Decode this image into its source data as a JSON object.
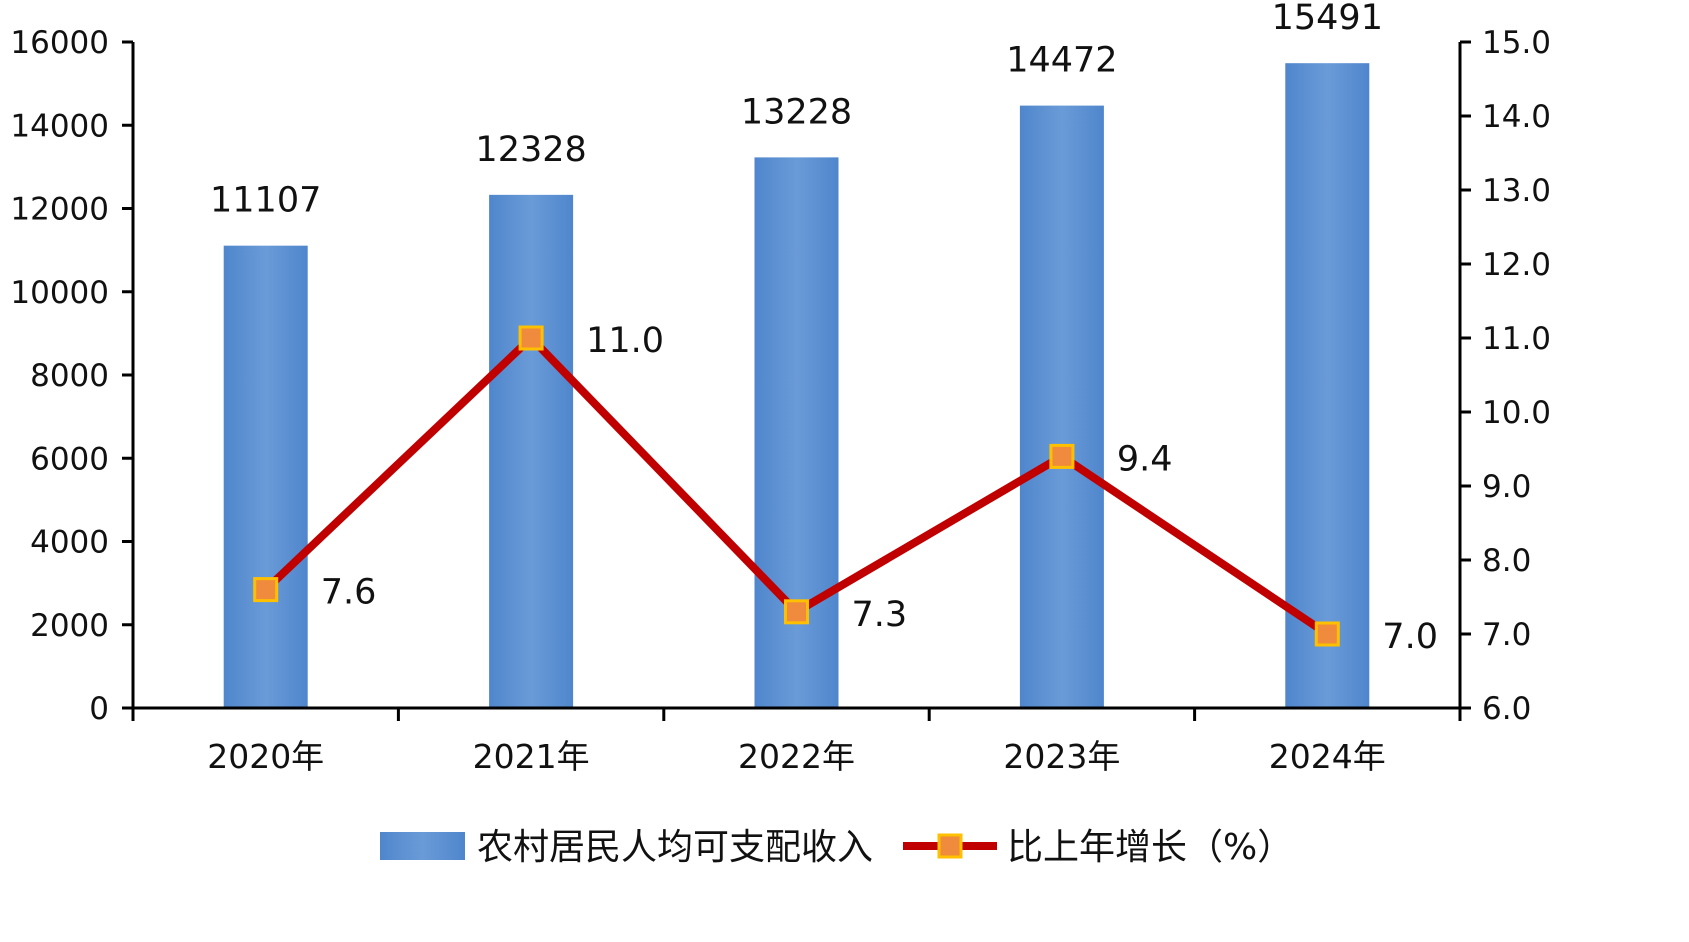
{
  "chart_data": {
    "type": "bar+line",
    "categories": [
      "2020年",
      "2021年",
      "2022年",
      "2023年",
      "2024年"
    ],
    "series": [
      {
        "name": "农村居民人均可支配收入",
        "type": "bar",
        "axis": "left",
        "values": [
          11107,
          12328,
          13228,
          14472,
          15491
        ],
        "labels": [
          "11107",
          "12328",
          "13228",
          "14472",
          "15491"
        ],
        "color": "#5b8fd0"
      },
      {
        "name": "比上年增长（%）",
        "type": "line",
        "axis": "right",
        "values": [
          7.6,
          11.0,
          7.3,
          9.4,
          7.0
        ],
        "labels": [
          "7.6",
          "11.0",
          "7.3",
          "9.4",
          "7.0"
        ],
        "color": "#c00000",
        "marker_color": "#f08a3c",
        "marker_border": "#ffc000"
      }
    ],
    "y_left": {
      "min": 0,
      "max": 16000,
      "ticks": [
        "0",
        "2000",
        "4000",
        "6000",
        "8000",
        "10000",
        "12000",
        "14000",
        "16000"
      ]
    },
    "y_right": {
      "min": 6.0,
      "max": 15.0,
      "ticks": [
        "6.0",
        "7.0",
        "8.0",
        "9.0",
        "10.0",
        "11.0",
        "12.0",
        "13.0",
        "14.0",
        "15.0"
      ]
    },
    "grid": false,
    "legend_position": "bottom"
  }
}
